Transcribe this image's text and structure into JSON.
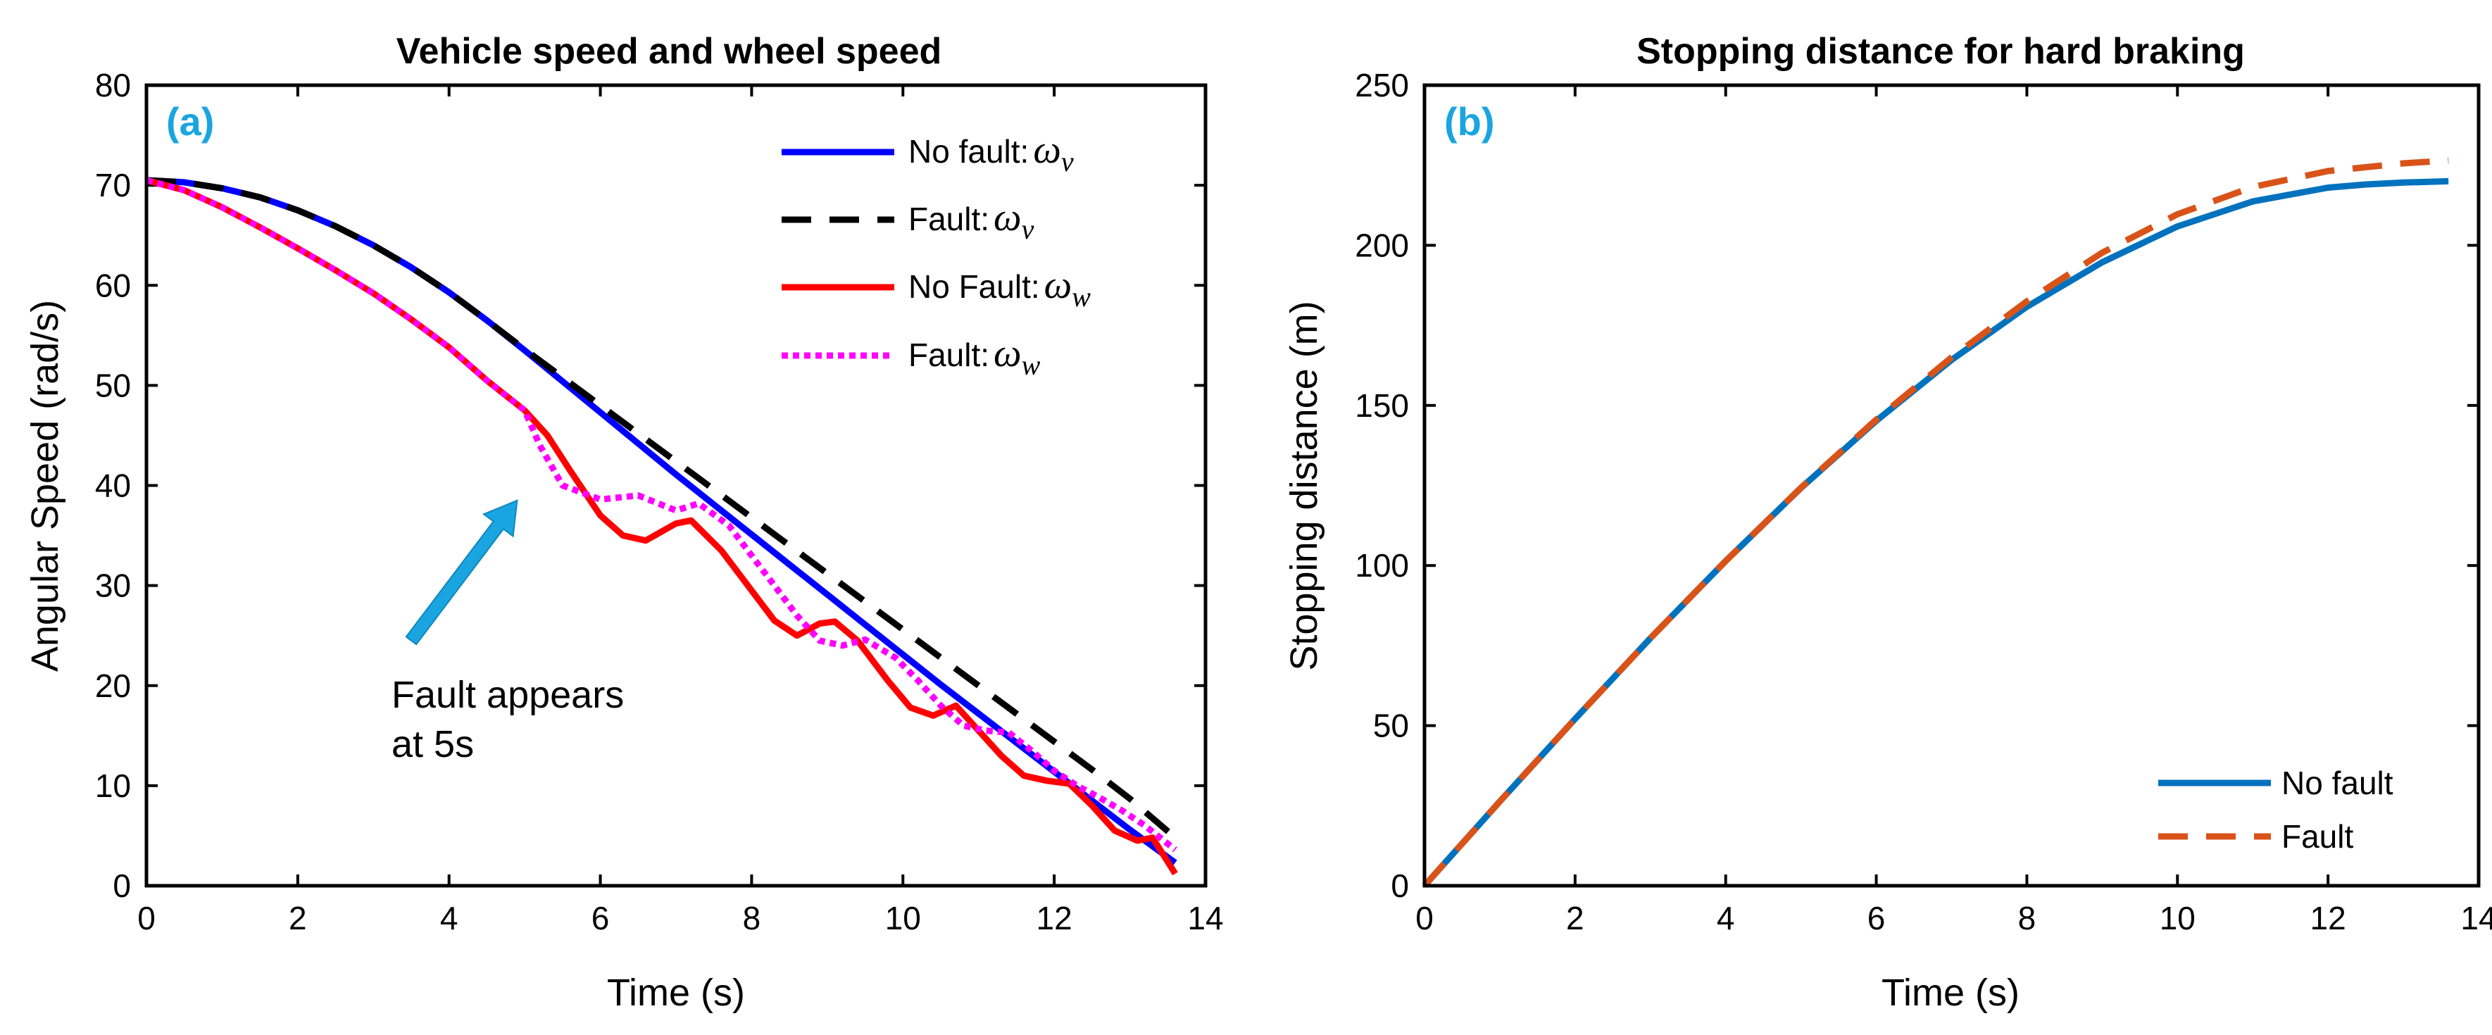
{
  "chart_data": [
    {
      "type": "line",
      "panel_label": "(a)",
      "title": "Vehicle speed and wheel speed",
      "xlabel": "Time (s)",
      "ylabel": "Angular Speed (rad/s)",
      "xlim": [
        0,
        14
      ],
      "ylim": [
        0,
        80
      ],
      "xticks": [
        0,
        2,
        4,
        6,
        8,
        10,
        12,
        14
      ],
      "yticks": [
        0,
        10,
        20,
        30,
        40,
        50,
        60,
        70,
        80
      ],
      "legend_position": "top-right",
      "annotation": {
        "lines": [
          "Fault appears",
          "at 5s"
        ],
        "arrow_from": [
          3.5,
          24.5
        ],
        "arrow_to": [
          4.9,
          38.5
        ]
      },
      "series": [
        {
          "name": "No fault:",
          "symbol": "ω",
          "subscript": "v",
          "color": "#0000ff",
          "style": "solid",
          "points": [
            [
              0,
              70.5
            ],
            [
              0.5,
              70.3
            ],
            [
              1,
              69.7
            ],
            [
              1.5,
              68.8
            ],
            [
              2,
              67.5
            ],
            [
              2.5,
              65.9
            ],
            [
              3,
              64.0
            ],
            [
              3.5,
              61.8
            ],
            [
              4,
              59.3
            ],
            [
              4.5,
              56.5
            ],
            [
              5,
              53.5
            ],
            [
              5.5,
              50.4
            ],
            [
              6,
              47.3
            ],
            [
              6.5,
              44.2
            ],
            [
              7,
              41.1
            ],
            [
              7.5,
              38.1
            ],
            [
              8,
              35.1
            ],
            [
              8.5,
              32.1
            ],
            [
              9,
              29.1
            ],
            [
              9.5,
              26.1
            ],
            [
              10,
              23.1
            ],
            [
              10.5,
              20.1
            ],
            [
              11,
              17.2
            ],
            [
              11.5,
              14.3
            ],
            [
              12,
              11.4
            ],
            [
              12.5,
              8.5
            ],
            [
              13,
              5.6
            ],
            [
              13.6,
              2.3
            ]
          ]
        },
        {
          "name": "Fault:",
          "symbol": "ω",
          "subscript": "v",
          "color": "#000000",
          "style": "dashed",
          "points": [
            [
              0,
              70.5
            ],
            [
              0.5,
              70.3
            ],
            [
              1,
              69.7
            ],
            [
              1.5,
              68.8
            ],
            [
              2,
              67.5
            ],
            [
              2.5,
              65.9
            ],
            [
              3,
              64.0
            ],
            [
              3.5,
              61.8
            ],
            [
              4,
              59.3
            ],
            [
              4.5,
              56.5
            ],
            [
              5,
              53.6
            ],
            [
              5.5,
              50.8
            ],
            [
              6,
              48.0
            ],
            [
              6.5,
              45.2
            ],
            [
              7,
              42.4
            ],
            [
              7.5,
              39.6
            ],
            [
              8,
              36.8
            ],
            [
              8.5,
              34.0
            ],
            [
              9,
              31.2
            ],
            [
              9.5,
              28.4
            ],
            [
              10,
              25.6
            ],
            [
              10.5,
              22.8
            ],
            [
              11,
              20.0
            ],
            [
              11.5,
              17.2
            ],
            [
              12,
              14.4
            ],
            [
              12.5,
              11.6
            ],
            [
              13,
              8.7
            ],
            [
              13.6,
              4.8
            ]
          ]
        },
        {
          "name": "No Fault:",
          "symbol": "ω",
          "subscript": "w",
          "color": "#ff0000",
          "style": "solid",
          "points": [
            [
              0,
              70.5
            ],
            [
              0.5,
              69.5
            ],
            [
              1,
              67.8
            ],
            [
              1.5,
              65.8
            ],
            [
              2,
              63.7
            ],
            [
              2.5,
              61.5
            ],
            [
              3,
              59.2
            ],
            [
              3.5,
              56.6
            ],
            [
              4,
              53.8
            ],
            [
              4.5,
              50.5
            ],
            [
              5,
              47.5
            ],
            [
              5.3,
              45.0
            ],
            [
              5.6,
              41.5
            ],
            [
              6,
              37.0
            ],
            [
              6.3,
              35.0
            ],
            [
              6.6,
              34.5
            ],
            [
              7,
              36.2
            ],
            [
              7.2,
              36.5
            ],
            [
              7.6,
              33.5
            ],
            [
              8,
              29.5
            ],
            [
              8.3,
              26.5
            ],
            [
              8.6,
              25.0
            ],
            [
              8.9,
              26.2
            ],
            [
              9.1,
              26.4
            ],
            [
              9.4,
              24.5
            ],
            [
              9.8,
              20.5
            ],
            [
              10.1,
              17.8
            ],
            [
              10.4,
              17.0
            ],
            [
              10.7,
              18.0
            ],
            [
              11,
              15.5
            ],
            [
              11.3,
              13.0
            ],
            [
              11.6,
              11.0
            ],
            [
              11.9,
              10.5
            ],
            [
              12.2,
              10.2
            ],
            [
              12.5,
              8.0
            ],
            [
              12.8,
              5.5
            ],
            [
              13.1,
              4.5
            ],
            [
              13.3,
              4.8
            ],
            [
              13.6,
              1.2
            ]
          ]
        },
        {
          "name": "Fault:",
          "symbol": "ω",
          "subscript": "w",
          "color": "#ff00ff",
          "style": "dotted",
          "points": [
            [
              0,
              70.5
            ],
            [
              0.5,
              69.5
            ],
            [
              1,
              67.8
            ],
            [
              1.5,
              65.8
            ],
            [
              2,
              63.7
            ],
            [
              2.5,
              61.5
            ],
            [
              3,
              59.2
            ],
            [
              3.5,
              56.6
            ],
            [
              4,
              53.8
            ],
            [
              4.5,
              50.5
            ],
            [
              5,
              47.5
            ],
            [
              5.2,
              44.0
            ],
            [
              5.5,
              40.0
            ],
            [
              6,
              38.6
            ],
            [
              6.5,
              39.0
            ],
            [
              7,
              37.5
            ],
            [
              7.3,
              38.2
            ],
            [
              7.7,
              36.0
            ],
            [
              8,
              33.0
            ],
            [
              8.3,
              30.0
            ],
            [
              8.6,
              27.0
            ],
            [
              8.9,
              24.5
            ],
            [
              9.2,
              24.0
            ],
            [
              9.5,
              24.6
            ],
            [
              9.9,
              22.8
            ],
            [
              10.2,
              20.5
            ],
            [
              10.5,
              18.0
            ],
            [
              10.8,
              16.0
            ],
            [
              11.1,
              15.5
            ],
            [
              11.4,
              15.3
            ],
            [
              11.7,
              13.5
            ],
            [
              12,
              11.5
            ],
            [
              12.3,
              10.0
            ],
            [
              12.6,
              8.8
            ],
            [
              12.9,
              7.5
            ],
            [
              13.2,
              6.0
            ],
            [
              13.6,
              3.6
            ]
          ]
        }
      ]
    },
    {
      "type": "line",
      "panel_label": "(b)",
      "title": "Stopping distance for hard braking",
      "xlabel": "Time (s)",
      "ylabel": "Stopping distance (m)",
      "xlim": [
        0,
        14
      ],
      "ylim": [
        0,
        250
      ],
      "xticks": [
        0,
        2,
        4,
        6,
        8,
        10,
        12,
        14
      ],
      "yticks": [
        0,
        50,
        100,
        150,
        200,
        250
      ],
      "legend_position": "bottom-right",
      "series": [
        {
          "name": "No fault",
          "color": "#0072bd",
          "style": "solid",
          "points": [
            [
              0,
              0
            ],
            [
              1,
              26.3
            ],
            [
              2,
              52.1
            ],
            [
              3,
              77.3
            ],
            [
              4,
              101.4
            ],
            [
              5,
              124.2
            ],
            [
              6,
              145.2
            ],
            [
              7,
              164.2
            ],
            [
              8,
              180.8
            ],
            [
              9,
              194.7
            ],
            [
              10,
              205.9
            ],
            [
              11,
              213.7
            ],
            [
              12,
              218.0
            ],
            [
              12.5,
              219.0
            ],
            [
              13,
              219.6
            ],
            [
              13.6,
              220.0
            ]
          ]
        },
        {
          "name": "Fault",
          "color": "#d95319",
          "style": "dashed",
          "points": [
            [
              0,
              0
            ],
            [
              1,
              26.3
            ],
            [
              2,
              52.1
            ],
            [
              3,
              77.3
            ],
            [
              4,
              101.4
            ],
            [
              5,
              124.3
            ],
            [
              6,
              145.6
            ],
            [
              7,
              165.0
            ],
            [
              8,
              182.5
            ],
            [
              9,
              197.7
            ],
            [
              10,
              209.7
            ],
            [
              11,
              218.2
            ],
            [
              12,
              223.2
            ],
            [
              13,
              225.6
            ],
            [
              13.6,
              226.5
            ]
          ]
        }
      ]
    }
  ]
}
